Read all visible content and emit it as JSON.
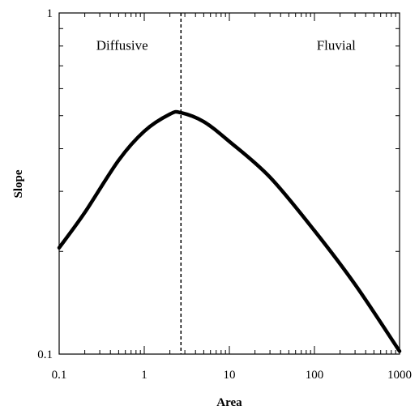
{
  "chart_data": {
    "type": "line",
    "xlabel": "Area",
    "ylabel": "Slope",
    "x_scale": "log",
    "y_scale": "log",
    "xlim": [
      0.1,
      1000
    ],
    "ylim": [
      0.1,
      1
    ],
    "x_ticks": [
      {
        "value": 0.1,
        "label": "0.1"
      },
      {
        "value": 1,
        "label": "1"
      },
      {
        "value": 10,
        "label": "10"
      },
      {
        "value": 100,
        "label": "100"
      },
      {
        "value": 1000,
        "label": "1000"
      }
    ],
    "y_ticks": [
      {
        "value": 0.1,
        "label": "0.1"
      },
      {
        "value": 1,
        "label": "1"
      }
    ],
    "series": [
      {
        "x": [
          0.1,
          0.2,
          0.5,
          1.0,
          2.0,
          2.7,
          5,
          10,
          30,
          100,
          300,
          1000
        ],
        "y": [
          0.205,
          0.26,
          0.37,
          0.45,
          0.505,
          0.51,
          0.48,
          0.42,
          0.33,
          0.23,
          0.16,
          0.102
        ]
      }
    ],
    "divider": {
      "x": 2.7,
      "style": "dashed"
    },
    "annotations": [
      {
        "text": "Diffusive",
        "x": 0.55,
        "y": 0.78
      },
      {
        "text": "Fluvial",
        "x": 180,
        "y": 0.78
      }
    ],
    "grid": false,
    "legend": "none"
  }
}
